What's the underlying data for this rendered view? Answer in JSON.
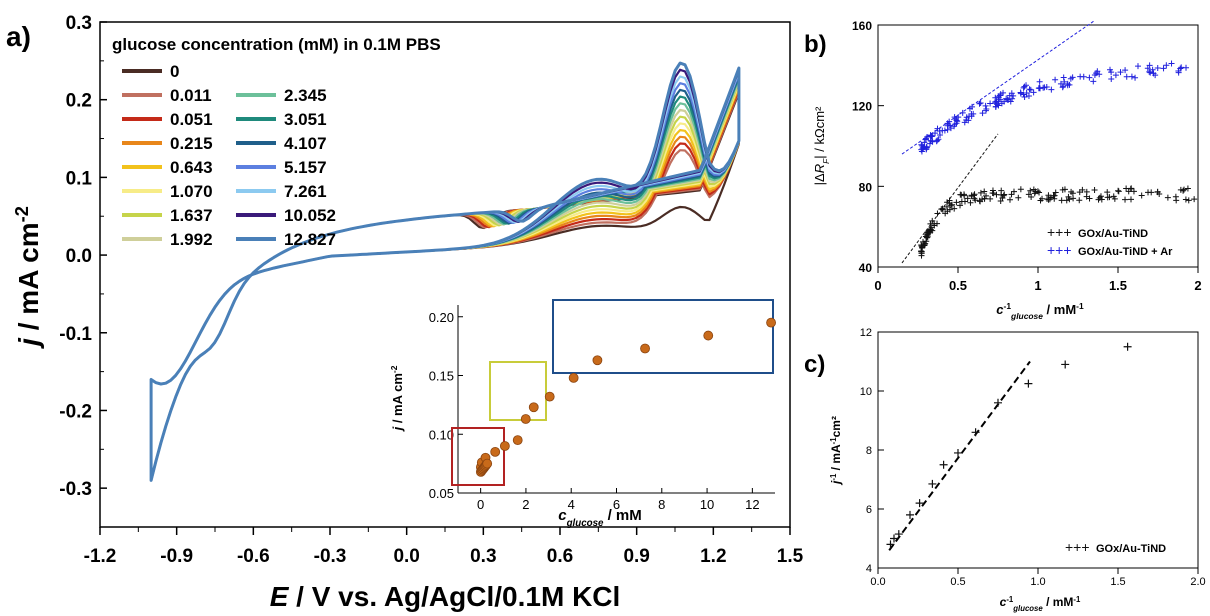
{
  "chart_data": [
    {
      "id": "a",
      "type": "line",
      "panel_label": "a)",
      "xlabel": "E / V vs. Ag/AgCl/0.1M KCl",
      "ylabel": "j / mA cm-2",
      "xlim": [
        -1.2,
        1.5
      ],
      "ylim": [
        -0.35,
        0.3
      ],
      "xticks": [
        "-1.2",
        "-0.9",
        "-0.6",
        "-0.3",
        "0.0",
        "0.3",
        "0.6",
        "0.9",
        "1.2",
        "1.5"
      ],
      "yticks": [
        "-0.3",
        "-0.2",
        "-0.1",
        "0.0",
        "0.1",
        "0.2",
        "0.3"
      ],
      "legend_title": "glucose concentration (mM) in 0.1M PBS",
      "legend_position": "top-left",
      "series": [
        {
          "name": "0",
          "color": "#4a2c24"
        },
        {
          "name": "0.011",
          "color": "#c07060"
        },
        {
          "name": "0.051",
          "color": "#c42a18"
        },
        {
          "name": "0.215",
          "color": "#e8861a"
        },
        {
          "name": "0.643",
          "color": "#f2c21c"
        },
        {
          "name": "1.070",
          "color": "#f7ec88"
        },
        {
          "name": "1.637",
          "color": "#c6d44a"
        },
        {
          "name": "1.992",
          "color": "#cfcf9a"
        },
        {
          "name": "2.345",
          "color": "#6cc09a"
        },
        {
          "name": "3.051",
          "color": "#1f8a7c"
        },
        {
          "name": "4.107",
          "color": "#1f5f8a"
        },
        {
          "name": "5.157",
          "color": "#5c7fe0"
        },
        {
          "name": "7.261",
          "color": "#8ccaf0"
        },
        {
          "name": "10.052",
          "color": "#3a1a7a"
        },
        {
          "name": "12.827",
          "color": "#4a80b8"
        }
      ],
      "inset": {
        "xlabel": "c_glucose / mM",
        "ylabel": "j / mA cm-2",
        "xlim": [
          -1,
          13
        ],
        "ylim": [
          0.05,
          0.21
        ],
        "xticks": [
          "0",
          "2",
          "4",
          "6",
          "8",
          "10",
          "12"
        ],
        "yticks": [
          "0.05",
          "0.10",
          "0.15",
          "0.20"
        ],
        "x": [
          0.011,
          0.051,
          0.215,
          0.643,
          1.07,
          1.637,
          1.992,
          2.345,
          3.051,
          4.107,
          5.157,
          7.261,
          10.052,
          12.827
        ],
        "y": [
          0.072,
          0.076,
          0.08,
          0.085,
          0.09,
          0.095,
          0.113,
          0.123,
          0.132,
          0.148,
          0.163,
          0.173,
          0.184,
          0.195
        ],
        "point_color": "#c86a1a",
        "box_colors": {
          "low": "#b22222",
          "mid": "#c8cc3a",
          "high": "#1f4e8a"
        }
      }
    },
    {
      "id": "b",
      "type": "scatter",
      "panel_label": "b)",
      "xlabel": "c-1 glucose / mM-1",
      "ylabel": "|ΔRF| / kΩcm²",
      "xlim": [
        0,
        2
      ],
      "ylim": [
        40,
        160
      ],
      "xticks": [
        "0",
        "0.5",
        "1",
        "1.5",
        "2"
      ],
      "yticks": [
        "40",
        "80",
        "120",
        "160"
      ],
      "legend_position": "bottom-right",
      "series": [
        {
          "name": "GOx/Au-TiND",
          "color": "#111111",
          "fit_line": [
            [
              0.15,
              42
            ],
            [
              0.75,
              106
            ]
          ]
        },
        {
          "name": "GOx/Au-TiND + Ar",
          "color": "#2020dd",
          "fit_line": [
            [
              0.15,
              96
            ],
            [
              1.35,
              162
            ]
          ]
        }
      ]
    },
    {
      "id": "c",
      "type": "scatter",
      "panel_label": "c)",
      "xlabel": "c-1 glucose / mM-1",
      "ylabel": "j-1 / mA-1cm²",
      "xlim": [
        0,
        2
      ],
      "ylim": [
        4,
        12
      ],
      "xticks": [
        "0.0",
        "0.5",
        "1.0",
        "1.5",
        "2.0"
      ],
      "yticks": [
        "4",
        "6",
        "8",
        "10",
        "12"
      ],
      "legend_position": "bottom-right",
      "series": [
        {
          "name": "GOx/Au-TiND",
          "color": "#111111",
          "x": [
            0.078,
            0.1,
            0.13,
            0.2,
            0.26,
            0.34,
            0.41,
            0.5,
            0.61,
            0.75,
            0.94,
            1.17,
            1.56
          ],
          "y": [
            4.8,
            5.0,
            5.15,
            5.8,
            6.2,
            6.85,
            7.5,
            7.9,
            8.6,
            9.6,
            10.25,
            10.9,
            11.5
          ]
        }
      ],
      "fit_line": [
        [
          0.07,
          4.6
        ],
        [
          0.95,
          11.0
        ]
      ]
    }
  ]
}
